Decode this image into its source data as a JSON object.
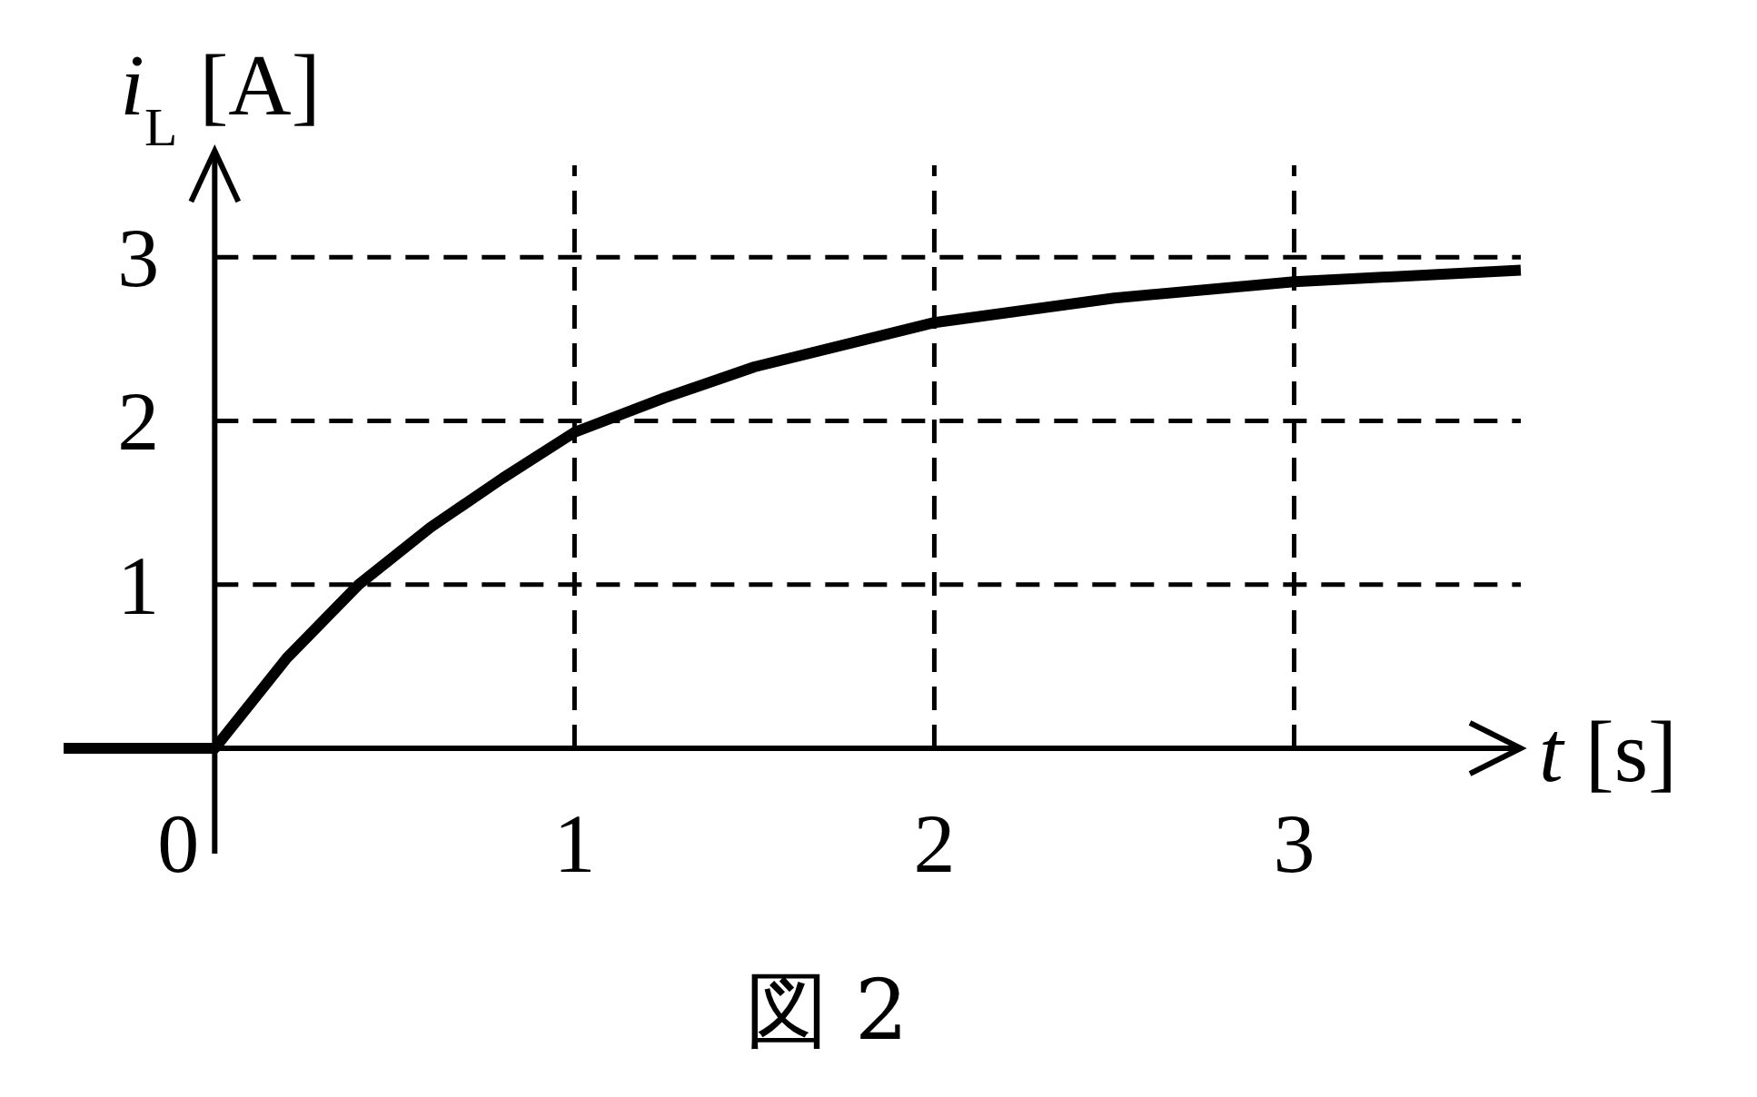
{
  "chart_data": {
    "type": "line",
    "xlabel": "t [s]",
    "ylabel": "i$_{L}$ [A]",
    "annotations": [
      "図 2"
    ],
    "x": [
      -0.42,
      0,
      0.2,
      0.4,
      0.6,
      0.8,
      1.0,
      1.25,
      1.5,
      2.0,
      2.5,
      3.0,
      3.63
    ],
    "series": [
      {
        "color": "#000000",
        "values": [
          0,
          0,
          0.55,
          1.0,
          1.35,
          1.65,
          1.93,
          2.14,
          2.33,
          2.6,
          2.75,
          2.85,
          2.92
        ]
      }
    ],
    "xlim": [
      -0.42,
      3.63
    ],
    "ylim": [
      0,
      3.65
    ],
    "xticks": [
      0,
      1,
      2,
      3
    ],
    "yticks": [
      1,
      2,
      3
    ],
    "grid": true,
    "marker": "none",
    "line_style": "solid"
  }
}
